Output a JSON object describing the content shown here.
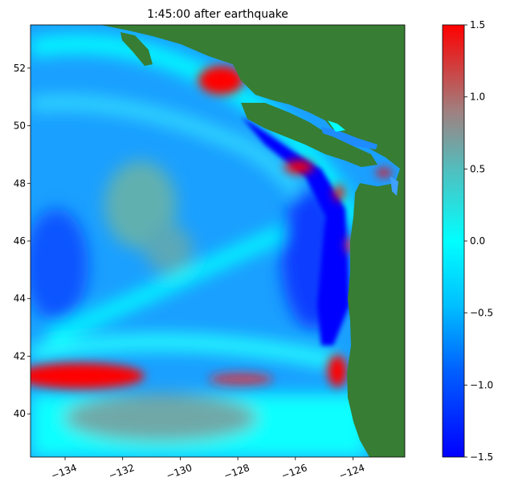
{
  "chart_data": {
    "type": "heatmap",
    "title": "1:45:00 after earthquake",
    "xlabel": "",
    "ylabel": "",
    "xlim": [
      -135.2,
      -122.2
    ],
    "ylim": [
      38.5,
      53.5
    ],
    "xticks": [
      -134,
      -132,
      -130,
      -128,
      -126,
      -124
    ],
    "xtick_labels": [
      "−134",
      "−132",
      "−130",
      "−128",
      "−126",
      "−124"
    ],
    "yticks": [
      40,
      42,
      44,
      46,
      48,
      50,
      52
    ],
    "ytick_labels": [
      "40",
      "42",
      "44",
      "46",
      "48",
      "50",
      "52"
    ],
    "colorbar": {
      "min": -1.5,
      "max": 1.5,
      "ticks": [
        -1.5,
        -1.0,
        -0.5,
        0.0,
        0.5,
        1.0,
        1.5
      ],
      "tick_labels": [
        "−1.5",
        "−1.0",
        "−0.5",
        "0.0",
        "0.5",
        "1.0",
        "1.5"
      ],
      "colors": [
        "#0000ff",
        "#00ffff",
        "#ff0000"
      ]
    },
    "land_color": "#377d33",
    "grid": false,
    "highlights": [
      {
        "lon": -134.0,
        "lat": 41.0,
        "value": 1.5
      },
      {
        "lon": -128.5,
        "lat": 51.6,
        "value": 1.5
      },
      {
        "lon": -126.0,
        "lat": 48.5,
        "value": 1.5
      },
      {
        "lon": -124.5,
        "lat": 41.5,
        "value": 1.5
      },
      {
        "lon": -131.0,
        "lat": 46.5,
        "value": 0.8
      },
      {
        "lon": -125.0,
        "lat": 46.0,
        "value": -1.5
      }
    ]
  }
}
